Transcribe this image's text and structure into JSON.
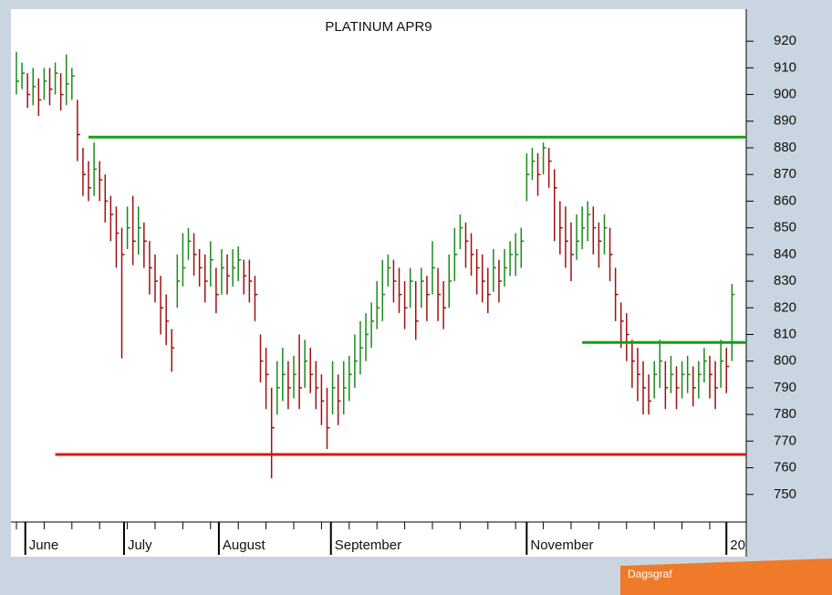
{
  "chart_data": {
    "type": "ohlc",
    "title": "PLATINUM APR9",
    "high": [
      916,
      912,
      908,
      910,
      906,
      910,
      910,
      912,
      908,
      915,
      910,
      898,
      880,
      875,
      882,
      875,
      870,
      862,
      858,
      850,
      858,
      862,
      858,
      852,
      845,
      840,
      832,
      825,
      812,
      840,
      848,
      850,
      848,
      842,
      840,
      845,
      835,
      842,
      840,
      842,
      843,
      838,
      838,
      832,
      810,
      805,
      790,
      800,
      805,
      800,
      802,
      810,
      808,
      805,
      800,
      795,
      790,
      800,
      795,
      800,
      802,
      810,
      815,
      818,
      822,
      830,
      838,
      840,
      838,
      835,
      830,
      835,
      830,
      835,
      832,
      845,
      835,
      830,
      840,
      850,
      855,
      852,
      848,
      842,
      840,
      835,
      842,
      838,
      842,
      845,
      848,
      850,
      878,
      880,
      878,
      882,
      880,
      872,
      860,
      858,
      852,
      855,
      858,
      860,
      858,
      852,
      855,
      850,
      835,
      822,
      818,
      808,
      805,
      800,
      795,
      800,
      808,
      800,
      802,
      798,
      800,
      802,
      798,
      800,
      805,
      802,
      800,
      808,
      805,
      829
    ],
    "low": [
      900,
      902,
      895,
      896,
      892,
      898,
      896,
      900,
      894,
      896,
      898,
      875,
      862,
      860,
      862,
      860,
      852,
      845,
      835,
      801,
      842,
      836,
      840,
      835,
      825,
      822,
      810,
      806,
      796,
      820,
      828,
      838,
      832,
      828,
      822,
      828,
      818,
      825,
      825,
      828,
      830,
      825,
      822,
      815,
      792,
      782,
      756,
      780,
      785,
      782,
      786,
      782,
      790,
      788,
      782,
      776,
      767,
      780,
      776,
      780,
      785,
      790,
      795,
      800,
      805,
      812,
      815,
      828,
      822,
      818,
      812,
      820,
      808,
      820,
      815,
      825,
      815,
      812,
      820,
      830,
      842,
      835,
      832,
      825,
      822,
      818,
      826,
      822,
      828,
      832,
      832,
      835,
      860,
      868,
      862,
      870,
      865,
      845,
      840,
      835,
      830,
      838,
      842,
      845,
      840,
      835,
      840,
      830,
      815,
      805,
      800,
      790,
      785,
      780,
      780,
      786,
      790,
      782,
      788,
      782,
      786,
      788,
      783,
      786,
      792,
      786,
      782,
      790,
      788,
      800
    ],
    "close": [
      905,
      908,
      900,
      903,
      898,
      905,
      902,
      908,
      900,
      904,
      907,
      885,
      870,
      865,
      872,
      868,
      860,
      855,
      848,
      840,
      850,
      845,
      850,
      845,
      835,
      830,
      820,
      815,
      805,
      830,
      835,
      845,
      840,
      835,
      830,
      838,
      825,
      835,
      832,
      835,
      838,
      832,
      830,
      825,
      800,
      795,
      775,
      790,
      795,
      790,
      795,
      790,
      800,
      795,
      790,
      785,
      775,
      790,
      785,
      790,
      795,
      800,
      805,
      810,
      815,
      820,
      825,
      835,
      830,
      825,
      820,
      830,
      815,
      830,
      825,
      835,
      825,
      820,
      830,
      840,
      850,
      845,
      840,
      835,
      830,
      825,
      835,
      830,
      835,
      840,
      840,
      845,
      870,
      875,
      870,
      880,
      875,
      865,
      850,
      845,
      840,
      845,
      850,
      855,
      850,
      845,
      850,
      840,
      825,
      815,
      810,
      800,
      795,
      790,
      785,
      795,
      800,
      790,
      795,
      790,
      795,
      795,
      790,
      795,
      800,
      795,
      790,
      800,
      798,
      825
    ],
    "up_color": "#1a8a1a",
    "down_color": "#a01010",
    "ylim": [
      740,
      931
    ],
    "yticks": [
      920,
      910,
      900,
      890,
      880,
      870,
      860,
      850,
      840,
      830,
      820,
      810,
      800,
      790,
      780,
      770,
      760,
      750
    ],
    "months": [
      {
        "label": "June",
        "index": 1.6
      },
      {
        "label": "July",
        "index": 19.4
      },
      {
        "label": "August",
        "index": 36.5
      },
      {
        "label": "September",
        "index": 56.7
      },
      {
        "label": "November",
        "index": 92
      },
      {
        "label": "20",
        "index": 128
      }
    ],
    "lines": [
      {
        "value": 884,
        "color": "#14a014",
        "start": 13
      },
      {
        "value": 765,
        "color": "#e81010",
        "start": 7
      },
      {
        "value": 807,
        "color": "#14a014",
        "start": 102
      }
    ]
  },
  "footer": {
    "label": "Dagsgraf"
  }
}
